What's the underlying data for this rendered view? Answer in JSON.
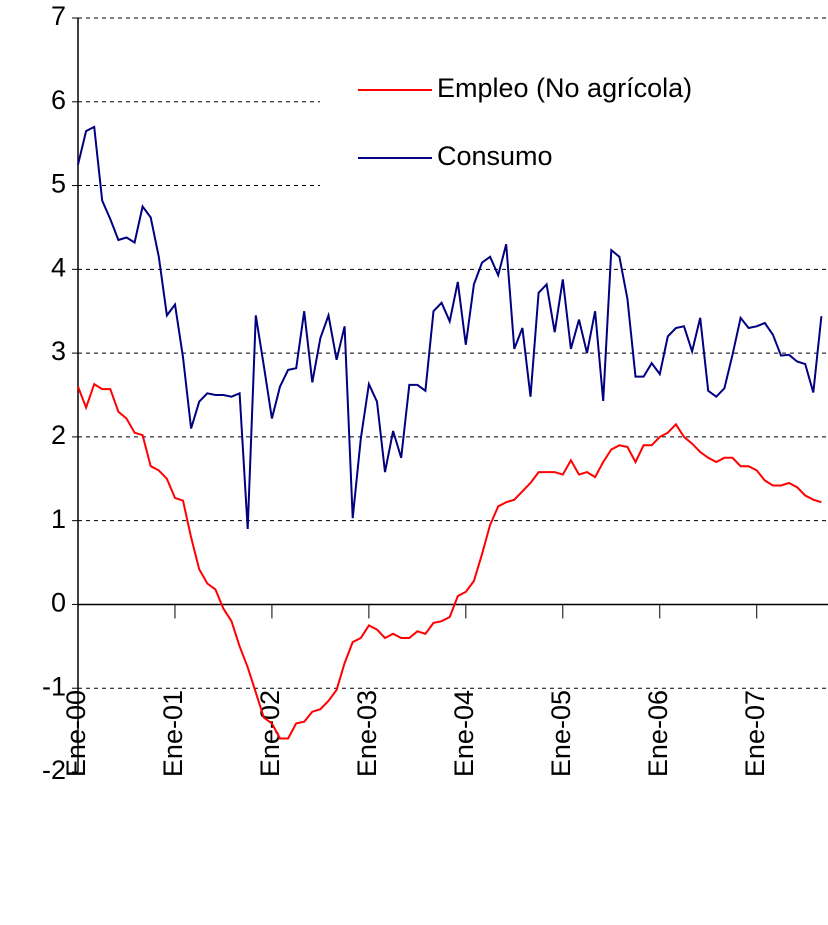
{
  "chart_data": {
    "type": "line",
    "categories": [
      "Ene-00",
      null,
      null,
      null,
      null,
      null,
      null,
      null,
      null,
      null,
      null,
      null,
      "Ene-01",
      null,
      null,
      null,
      null,
      null,
      null,
      null,
      null,
      null,
      null,
      null,
      "Ene-02",
      null,
      null,
      null,
      null,
      null,
      null,
      null,
      null,
      null,
      null,
      null,
      "Ene-03",
      null,
      null,
      null,
      null,
      null,
      null,
      null,
      null,
      null,
      null,
      null,
      "Ene-04",
      null,
      null,
      null,
      null,
      null,
      null,
      null,
      null,
      null,
      null,
      null,
      "Ene-05",
      null,
      null,
      null,
      null,
      null,
      null,
      null,
      null,
      null,
      null,
      null,
      "Ene-06",
      null,
      null,
      null,
      null,
      null,
      null,
      null,
      null,
      null,
      null,
      null,
      "Ene-07",
      null,
      null,
      null,
      null,
      null,
      null,
      null,
      null
    ],
    "series": [
      {
        "name": "Empleo (No agrícola)",
        "color": "#ff0000",
        "values": [
          2.6,
          2.35,
          2.63,
          2.57,
          2.57,
          2.3,
          2.22,
          2.05,
          2.02,
          1.65,
          1.6,
          1.5,
          1.27,
          1.24,
          0.8,
          0.42,
          0.25,
          0.18,
          -0.05,
          -0.2,
          -0.5,
          -0.75,
          -1.05,
          -1.35,
          -1.42,
          -1.6,
          -1.6,
          -1.42,
          -1.4,
          -1.28,
          -1.25,
          -1.15,
          -1.02,
          -0.7,
          -0.45,
          -0.4,
          -0.25,
          -0.3,
          -0.4,
          -0.35,
          -0.4,
          -0.4,
          -0.32,
          -0.35,
          -0.22,
          -0.2,
          -0.15,
          0.1,
          0.15,
          0.28,
          0.6,
          0.95,
          1.17,
          1.22,
          1.25,
          1.35,
          1.45,
          1.58,
          1.58,
          1.58,
          1.55,
          1.72,
          1.55,
          1.58,
          1.52,
          1.7,
          1.85,
          1.9,
          1.88,
          1.7,
          1.9,
          1.9,
          2.0,
          2.05,
          2.15,
          2.0,
          1.92,
          1.82,
          1.75,
          1.7,
          1.75,
          1.75,
          1.65,
          1.65,
          1.6,
          1.48,
          1.42,
          1.42,
          1.45,
          1.4,
          1.3,
          1.25,
          1.22
        ]
      },
      {
        "name": "Consumo",
        "color": "#000080",
        "values": [
          5.25,
          5.65,
          5.7,
          4.82,
          4.6,
          4.35,
          4.38,
          4.32,
          4.75,
          4.62,
          4.15,
          3.45,
          3.58,
          2.95,
          2.1,
          2.42,
          2.52,
          2.5,
          2.5,
          2.48,
          2.52,
          0.9,
          3.45,
          2.85,
          2.22,
          2.6,
          2.8,
          2.82,
          3.5,
          2.65,
          3.18,
          3.45,
          2.92,
          3.32,
          1.03,
          1.98,
          2.63,
          2.42,
          1.58,
          2.07,
          1.75,
          2.62,
          2.62,
          2.55,
          3.5,
          3.6,
          3.38,
          3.85,
          3.1,
          3.82,
          4.08,
          4.15,
          3.93,
          4.3,
          3.05,
          3.3,
          2.48,
          3.72,
          3.82,
          3.25,
          3.88,
          3.05,
          3.4,
          3.0,
          3.5,
          2.43,
          4.23,
          4.15,
          3.65,
          2.72,
          2.72,
          2.88,
          2.75,
          3.2,
          3.3,
          3.32,
          3.02,
          3.42,
          2.55,
          2.48,
          2.58,
          2.98,
          3.42,
          3.3,
          3.32,
          3.36,
          3.22,
          2.97,
          2.98,
          2.9,
          2.87,
          2.53,
          3.44
        ]
      }
    ],
    "ylim": [
      -2,
      7
    ],
    "yticks": [
      -2,
      -1,
      0,
      1,
      2,
      3,
      4,
      5,
      6,
      7
    ],
    "grid": true,
    "legend": "upper right"
  }
}
